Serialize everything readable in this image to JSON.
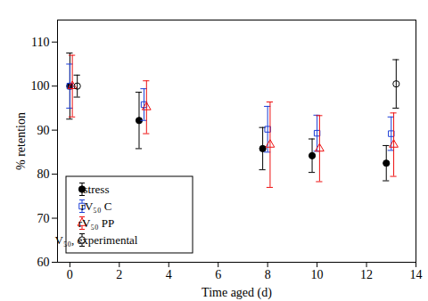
{
  "chart_data": {
    "type": "scatter",
    "x_label": "Time aged (d)",
    "y_label": "% retention",
    "xlim": [
      -0.5,
      14
    ],
    "ylim": [
      60,
      115
    ],
    "xticks": [
      0,
      2,
      4,
      6,
      8,
      10,
      12,
      14
    ],
    "yticks": [
      60,
      70,
      80,
      90,
      100,
      110
    ],
    "grid": false,
    "legend": "lower left",
    "series": [
      {
        "name": "stress",
        "color": "#000000",
        "marker": "circle-filled",
        "x": [
          0,
          2.8,
          7.8,
          9.8,
          12.8
        ],
        "values": [
          100,
          92.2,
          85.8,
          84.2,
          82.5
        ],
        "error": [
          7.5,
          6.4,
          4.8,
          3.8,
          4.0
        ]
      },
      {
        "name": "rV₅₀ C",
        "color": "#1a3cd6",
        "marker": "square-open",
        "x": [
          0,
          3,
          8,
          10,
          13
        ],
        "values": [
          100,
          95.8,
          90.2,
          89.3,
          89.2
        ],
        "error": [
          5.0,
          3.6,
          5.2,
          4.1,
          3.8
        ]
      },
      {
        "name": "rV₅₀ PP",
        "color": "#ee1111",
        "marker": "triangle-open",
        "x": [
          0.1,
          3.1,
          8.1,
          10.1,
          13.1
        ],
        "values": [
          100,
          95.2,
          86.7,
          85.8,
          86.7
        ],
        "error": [
          7.0,
          6.0,
          9.7,
          7.5,
          7.2
        ]
      },
      {
        "name": "V₅₀, experimental",
        "color": "#000000",
        "marker": "circle-open",
        "x": [
          0.3,
          13.2
        ],
        "values": [
          100,
          100.5
        ],
        "error": [
          2.5,
          5.5
        ]
      }
    ]
  }
}
